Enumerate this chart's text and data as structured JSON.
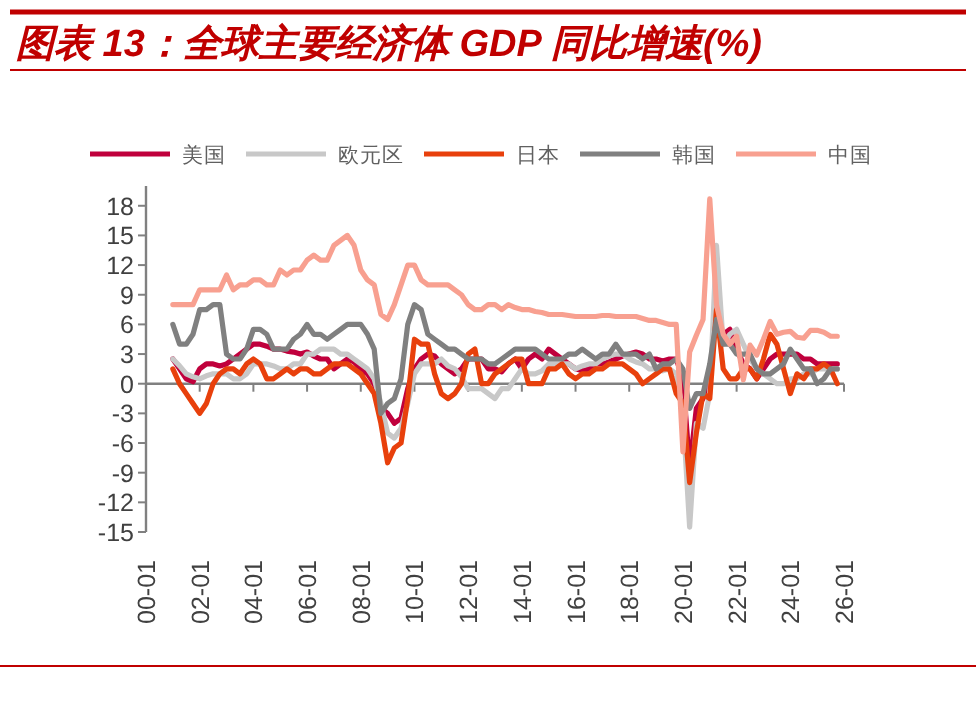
{
  "chart_data": {
    "type": "line",
    "title": "图表 13：全球主要经济体 GDP 同比增速(%)",
    "legend": "top",
    "categories": [
      "00-01",
      null,
      null,
      null,
      null,
      null,
      null,
      null,
      "02-01",
      null,
      null,
      null,
      null,
      null,
      null,
      null,
      "04-01",
      null,
      null,
      null,
      null,
      null,
      null,
      null,
      "06-01",
      null,
      null,
      null,
      null,
      null,
      null,
      null,
      "08-01",
      null,
      null,
      null,
      null,
      null,
      null,
      null,
      "10-01",
      null,
      null,
      null,
      null,
      null,
      null,
      null,
      "12-01",
      null,
      null,
      null,
      null,
      null,
      null,
      null,
      "14-01",
      null,
      null,
      null,
      null,
      null,
      null,
      null,
      "16-01",
      null,
      null,
      null,
      null,
      null,
      null,
      null,
      "18-01",
      null,
      null,
      null,
      null,
      null,
      null,
      null,
      "20-01",
      null,
      null,
      null,
      null,
      null,
      null,
      null,
      "22-01",
      null,
      null,
      null,
      null,
      null,
      null,
      null,
      "24-01",
      null,
      null,
      null,
      null,
      null,
      null,
      null,
      "26-01"
    ],
    "ylim": [
      -15,
      20
    ],
    "yticks": [
      -15,
      -12,
      -9,
      -6,
      -3,
      0,
      3,
      6,
      9,
      12,
      15,
      18
    ],
    "series": [
      {
        "name": "美国",
        "color": "#c0003c",
        "values": [
          null,
          null,
          null,
          null,
          2.5,
          1.5,
          0.5,
          0.2,
          1.5,
          2,
          2,
          1.8,
          2,
          2.5,
          3,
          3.5,
          4,
          4,
          3.8,
          3.5,
          3.5,
          3.3,
          3.2,
          3,
          3.2,
          2.8,
          2.5,
          2.5,
          1.5,
          2,
          2.5,
          2.2,
          1.5,
          1,
          0,
          -2.5,
          -3,
          -4,
          -3.5,
          -0.5,
          1.5,
          2.5,
          3,
          2.8,
          2,
          1.5,
          1,
          1.5,
          2.5,
          2.5,
          2.5,
          1.5,
          1.5,
          1.2,
          2,
          2.5,
          1.5,
          2.5,
          3,
          2.5,
          3.5,
          3,
          2.5,
          2,
          1.5,
          1.3,
          1.5,
          2,
          2,
          2.2,
          2.5,
          2.8,
          3,
          3.2,
          3,
          2.5,
          2.5,
          2.3,
          2.5,
          2.5,
          0.5,
          -8.5,
          -2.5,
          -1.5,
          1.5,
          null,
          5,
          5.5,
          3.5,
          2,
          1.5,
          0.5,
          1.5,
          2.5,
          3,
          3,
          3,
          3,
          2.5,
          2.5,
          2,
          2,
          2,
          2,
          null
        ]
      },
      {
        "name": "欧元区",
        "color": "#c8c8c8",
        "values": [
          null,
          null,
          null,
          null,
          2.5,
          1.8,
          1,
          0.7,
          0.5,
          0.8,
          1,
          1,
          1,
          0.5,
          0.5,
          1,
          2,
          2,
          2,
          1.8,
          1.5,
          1.5,
          2,
          2,
          3,
          3,
          3.5,
          3.5,
          3.5,
          3,
          3,
          2.5,
          2,
          1.5,
          0.5,
          -2,
          -5,
          -5.5,
          -4.5,
          -2,
          1,
          2,
          2,
          2,
          2.5,
          1.8,
          1.5,
          0.7,
          -0.5,
          -0.5,
          -0.5,
          -1,
          -1.5,
          -0.5,
          -0.5,
          0.5,
          1.5,
          1,
          1,
          1.3,
          2,
          2,
          2,
          2,
          1.5,
          1.8,
          2,
          2,
          2.5,
          2.8,
          3,
          3,
          2.5,
          2.2,
          2,
          1.5,
          1.5,
          1.3,
          1.5,
          1,
          -3,
          -14.5,
          -4,
          -4.5,
          -1,
          14,
          4,
          5,
          5.5,
          4,
          2.5,
          1.5,
          1,
          0.5,
          0,
          0,
          0.5,
          0.5,
          1,
          1,
          1.5,
          1.5,
          1.5,
          1.5,
          null
        ]
      },
      {
        "name": "日本",
        "color": "#e8400c",
        "values": [
          null,
          null,
          null,
          null,
          1.5,
          0,
          -1,
          -2,
          -3,
          -2,
          0,
          1,
          1.5,
          1.5,
          1,
          2,
          2.5,
          2,
          0.5,
          0.5,
          1,
          1.5,
          1,
          1.5,
          1.5,
          1,
          1,
          1.5,
          2,
          2,
          2,
          1.5,
          1,
          0,
          -1,
          -4,
          -8,
          -6.5,
          -6,
          -1.5,
          4.5,
          4,
          4,
          1,
          -1,
          -1.5,
          -1,
          0,
          3,
          3.5,
          0,
          0,
          1,
          1.5,
          2,
          2.5,
          2.5,
          0,
          0,
          0,
          1.5,
          1.5,
          2,
          1,
          0.5,
          1,
          1,
          1.5,
          1.5,
          2,
          2,
          2,
          1.5,
          1,
          0,
          0.5,
          1,
          1.5,
          1.5,
          -1,
          -2,
          -10,
          -5,
          -1,
          -1.5,
          7.5,
          1.5,
          0.5,
          0.5,
          1.5,
          1.5,
          0.5,
          2.5,
          5,
          4,
          1.5,
          -1,
          1,
          0.5,
          1.5,
          1.5,
          2,
          1.5,
          0,
          null
        ]
      },
      {
        "name": "韩国",
        "color": "#808080",
        "values": [
          null,
          null,
          null,
          null,
          6,
          4,
          4,
          5,
          7.5,
          7.5,
          8,
          8,
          3,
          2.5,
          2.5,
          3.5,
          5.5,
          5.5,
          5,
          3.5,
          3.5,
          3.5,
          4.5,
          5,
          6,
          5,
          5,
          4.5,
          5,
          5.5,
          6,
          6,
          6,
          5,
          3.5,
          -3,
          -2,
          -1.5,
          0.5,
          6,
          8,
          7.5,
          5,
          4.5,
          4,
          3.5,
          3.5,
          3,
          2.5,
          2.5,
          2.5,
          2,
          2,
          2.5,
          3,
          3.5,
          3.5,
          3.5,
          3.5,
          3,
          2.5,
          2.5,
          2.5,
          3,
          3,
          3.5,
          3,
          2.5,
          3,
          3,
          4,
          3,
          3,
          3,
          2.5,
          3,
          1.5,
          2,
          2,
          2.5,
          1.5,
          -2.5,
          -1,
          -1,
          2,
          6.5,
          4,
          4,
          3,
          3,
          3,
          1.5,
          1,
          1,
          1.5,
          2,
          3.5,
          2.5,
          1.5,
          1.5,
          0,
          0.5,
          1.5,
          1.5,
          null
        ]
      },
      {
        "name": "中国",
        "color": "#f8a090",
        "values": [
          null,
          null,
          null,
          null,
          8,
          8,
          8,
          8,
          9.5,
          9.5,
          9.5,
          9.5,
          11,
          9.5,
          10,
          10,
          10.5,
          10.5,
          10,
          10,
          11.5,
          11,
          11.5,
          11.5,
          12.5,
          13,
          12.5,
          12.5,
          14,
          14.5,
          15,
          14,
          11.5,
          10.5,
          10,
          7,
          6.5,
          8,
          10,
          12,
          12,
          10.5,
          10,
          10,
          10,
          10,
          9.5,
          9,
          8,
          7.5,
          7.5,
          8,
          8,
          7.5,
          8,
          7.7,
          7.5,
          7.5,
          7.3,
          7.2,
          7,
          7,
          7,
          6.9,
          6.8,
          6.8,
          6.8,
          6.8,
          6.9,
          6.9,
          6.8,
          6.8,
          6.8,
          6.8,
          6.6,
          6.4,
          6.4,
          6.2,
          6,
          6,
          -6.9,
          3.2,
          4.9,
          6.5,
          18.7,
          8,
          5,
          4,
          4.8,
          0.4,
          3.9,
          2.9,
          4.5,
          6.3,
          5,
          5.2,
          5.3,
          4.7,
          4.6,
          5.4,
          5.4,
          5.2,
          4.8,
          4.8,
          null
        ]
      }
    ]
  }
}
